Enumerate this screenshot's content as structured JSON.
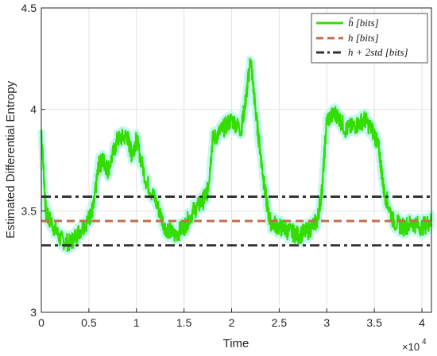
{
  "chart_data": {
    "type": "line",
    "title": "",
    "xlabel": "Time",
    "ylabel": "Estimated Differential Entropy",
    "x_multiplier_label": "×10",
    "x_multiplier_exponent": "4",
    "xlim": [
      0,
      41000
    ],
    "ylim": [
      3,
      4.5
    ],
    "xticks": [
      0,
      5000,
      10000,
      15000,
      20000,
      25000,
      30000,
      35000,
      40000
    ],
    "xtick_labels": [
      "0",
      "0.5",
      "1",
      "1.5",
      "2",
      "2.5",
      "3",
      "3.5",
      "4"
    ],
    "yticks": [
      3,
      3.5,
      4,
      4.5
    ],
    "ytick_labels": [
      "3",
      "3.5",
      "4",
      "4.5"
    ],
    "grid": true,
    "legend_position": "top-right",
    "colors": {
      "estimate": "#33dd00",
      "estimate_band": "#b8f5ee",
      "true": "#c0704f",
      "threshold": "#333333"
    },
    "series": [
      {
        "name": "ĥ [bits]",
        "style": "solid",
        "x": [
          0,
          500,
          1000,
          2000,
          3000,
          4000,
          5000,
          5500,
          6000,
          6500,
          7000,
          8000,
          9000,
          9500,
          10000,
          11000,
          12000,
          13000,
          14000,
          15000,
          16000,
          17000,
          17500,
          18000,
          19000,
          20000,
          21000,
          21500,
          22000,
          22500,
          23000,
          23500,
          24000,
          25000,
          26000,
          27000,
          28000,
          29000,
          29500,
          30000,
          31000,
          32000,
          33000,
          34000,
          35000,
          35500,
          36000,
          37000,
          38000,
          39000,
          40000,
          41000
        ],
        "values": [
          3.9,
          3.48,
          3.45,
          3.36,
          3.34,
          3.4,
          3.46,
          3.52,
          3.72,
          3.75,
          3.7,
          3.85,
          3.87,
          3.78,
          3.85,
          3.65,
          3.55,
          3.42,
          3.38,
          3.42,
          3.5,
          3.55,
          3.6,
          3.85,
          3.9,
          3.95,
          3.9,
          4.05,
          4.25,
          4.0,
          3.8,
          3.6,
          3.45,
          3.42,
          3.4,
          3.38,
          3.4,
          3.45,
          3.6,
          3.95,
          3.98,
          3.9,
          3.92,
          3.95,
          3.88,
          3.8,
          3.6,
          3.45,
          3.42,
          3.44,
          3.42,
          3.45
        ]
      },
      {
        "name": "h [bits]",
        "style": "dashed",
        "x": [
          0,
          41000
        ],
        "values": [
          3.45,
          3.45
        ]
      },
      {
        "name": "h + 2std [bits]",
        "style": "dashdot",
        "x": [
          0,
          41000
        ],
        "values": [
          3.57,
          3.57
        ]
      },
      {
        "name": "",
        "style": "dashdot",
        "x": [
          0,
          41000
        ],
        "values": [
          3.33,
          3.33
        ]
      }
    ]
  }
}
